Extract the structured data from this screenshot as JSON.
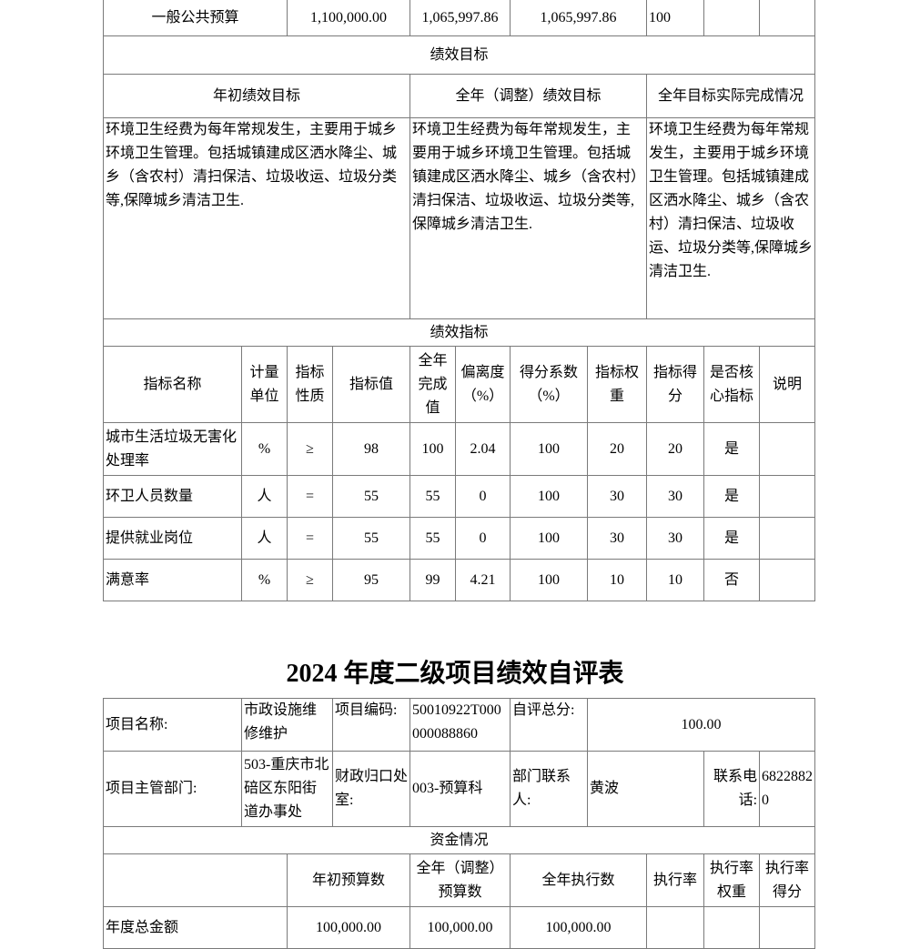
{
  "table1": {
    "budget_row": [
      "一般公共预算",
      "1,100,000.00",
      "1,065,997.86",
      "1,065,997.86",
      "100",
      "",
      ""
    ],
    "goals_title": "绩效目标",
    "goal_headers": [
      "年初绩效目标",
      "全年（调整）绩效目标",
      "全年目标实际完成情况"
    ],
    "goal_texts": [
      "环境卫生经费为每年常规发生，主要用于城乡环境卫生管理。包括城镇建成区洒水降尘、城乡（含农村）清扫保洁、垃圾收运、垃圾分类等,保障城乡清洁卫生.",
      "环境卫生经费为每年常规发生，主要用于城乡环境卫生管理。包括城镇建成区洒水降尘、城乡（含农村）清扫保洁、垃圾收运、垃圾分类等,保障城乡清洁卫生.",
      "环境卫生经费为每年常规发生，主要用于城乡环境卫生管理。包括城镇建成区洒水降尘、城乡（含农村）清扫保洁、垃圾收运、垃圾分类等,保障城乡清洁卫生."
    ],
    "indicators_title": "绩效指标",
    "indicator_headers": [
      "指标名称",
      "计量单位",
      "指标性质",
      "指标值",
      "全年完成值",
      "偏离度（%）",
      "得分系数（%）",
      "指标权重",
      "指标得分",
      "是否核心指标",
      "说明"
    ],
    "indicator_rows": [
      [
        "城市生活垃圾无害化处理率",
        "%",
        "≥",
        "98",
        "100",
        "2.04",
        "100",
        "20",
        "20",
        "是",
        ""
      ],
      [
        "环卫人员数量",
        "人",
        "=",
        "55",
        "55",
        "0",
        "100",
        "30",
        "30",
        "是",
        ""
      ],
      [
        "提供就业岗位",
        "人",
        "=",
        "55",
        "55",
        "0",
        "100",
        "30",
        "30",
        "是",
        ""
      ],
      [
        "满意率",
        "%",
        "≥",
        "95",
        "99",
        "4.21",
        "100",
        "10",
        "10",
        "否",
        ""
      ]
    ]
  },
  "title": "2024 年度二级项目绩效自评表",
  "table2": {
    "project_name_label": "项目名称:",
    "project_name": "市政设施维修维护",
    "project_code_label": "项目编码:",
    "project_code": "50010922T000000088860",
    "score_label": "自评总分:",
    "score": "100.00",
    "dept_label": "项目主管部门:",
    "dept": "503-重庆市北碚区东阳街道办事处",
    "finance_label": "财政归口处室:",
    "finance": "003-预算科",
    "contact_label": "部门联系人:",
    "contact": "黄波",
    "phone_label": "联系电话:",
    "phone": "68228820",
    "funds_title": "资金情况",
    "funds_headers": [
      "",
      "年初预算数",
      "全年（调整）预算数",
      "全年执行数",
      "执行率",
      "执行率权重",
      "执行率得分"
    ],
    "funds_row": [
      "年度总金额",
      "100,000.00",
      "100,000.00",
      "100,000.00",
      "",
      "",
      ""
    ]
  }
}
